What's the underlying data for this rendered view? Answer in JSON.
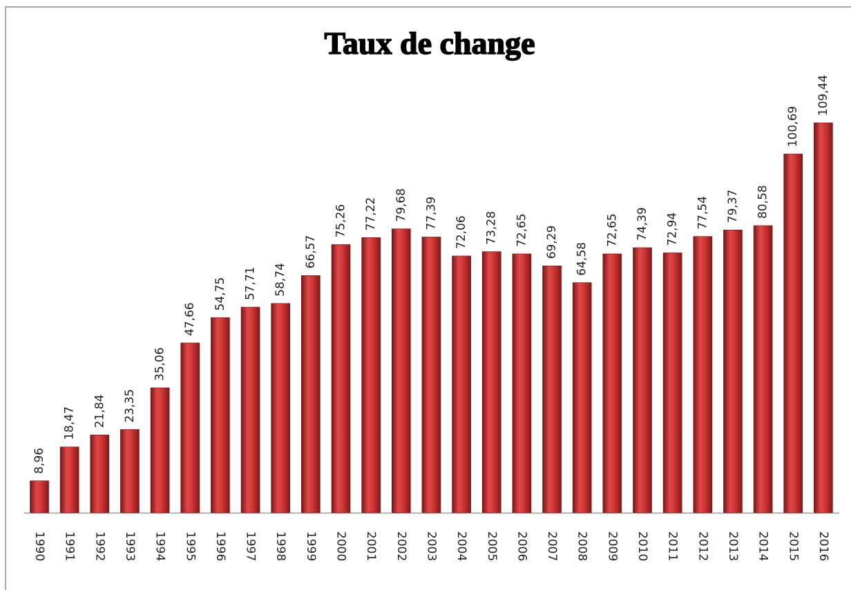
{
  "chart_data": {
    "type": "bar",
    "title": "Taux de change",
    "categories": [
      "1990",
      "1991",
      "1992",
      "1993",
      "1994",
      "1995",
      "1996",
      "1997",
      "1998",
      "1999",
      "2000",
      "2001",
      "2002",
      "2003",
      "2004",
      "2005",
      "2006",
      "2007",
      "2008",
      "2009",
      "2010",
      "2011",
      "2012",
      "2013",
      "2014",
      "2015",
      "2016"
    ],
    "values": [
      8.96,
      18.47,
      21.84,
      23.35,
      35.06,
      47.66,
      54.75,
      57.71,
      58.74,
      66.57,
      75.26,
      77.22,
      79.68,
      77.39,
      72.06,
      73.28,
      72.65,
      69.29,
      64.58,
      72.65,
      74.39,
      72.94,
      77.54,
      79.37,
      80.58,
      100.69,
      109.44
    ],
    "value_labels": [
      "8,96",
      "18,47",
      "21,84",
      "23,35",
      "35,06",
      "47,66",
      "54,75",
      "57,71",
      "58,74",
      "66,57",
      "75,26",
      "77,22",
      "79,68",
      "77,39",
      "72,06",
      "73,28",
      "72,65",
      "69,29",
      "64,58",
      "72,65",
      "74,39",
      "72,94",
      "77,54",
      "79,37",
      "80,58",
      "100,69",
      "109,44"
    ],
    "color": "#c8302f"
  }
}
